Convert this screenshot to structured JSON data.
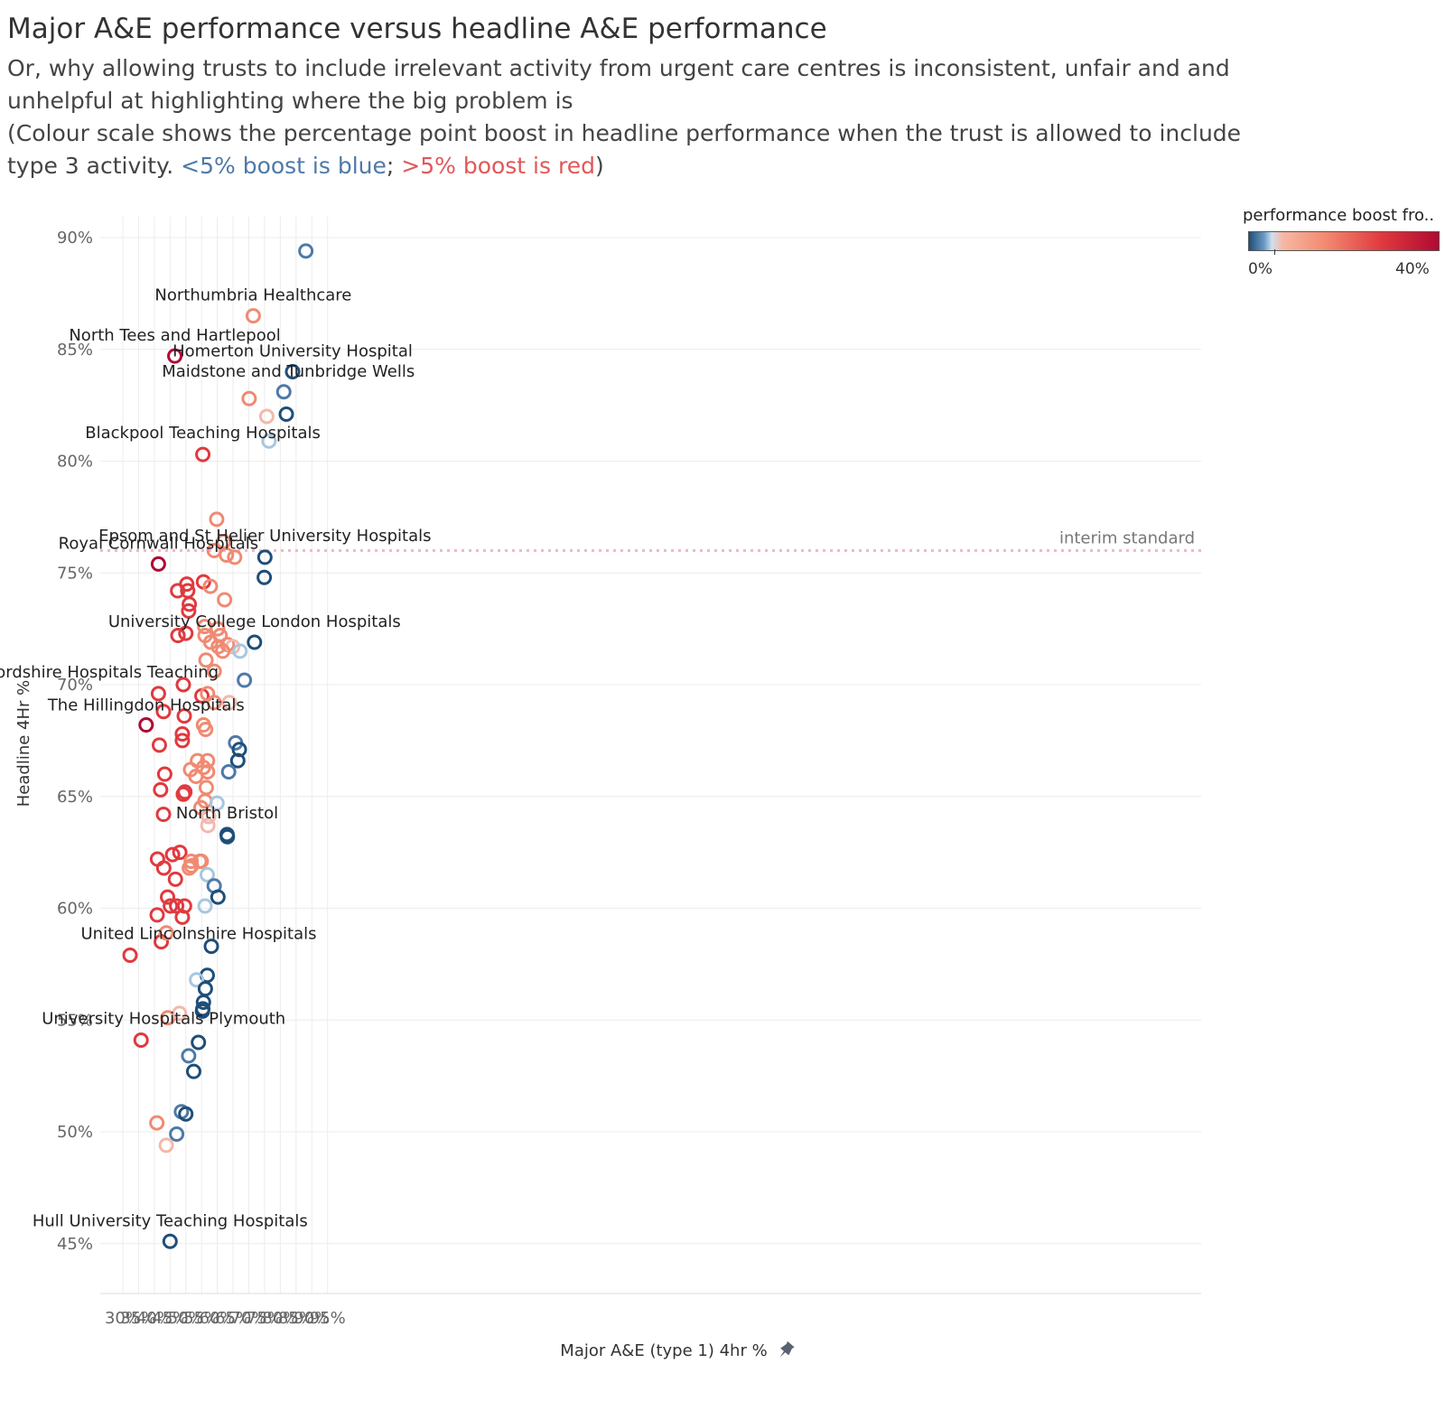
{
  "title": "Major A&E performance versus headline A&E performance",
  "subtitle": {
    "line1": "Or, why allowing trusts to include irrelevant activity from urgent care centres is inconsistent, unfair and  and",
    "line2": "unhelpful at highlighting where the big problem is",
    "line3": "(Colour scale shows the percentage point boost in headline performance when the trust is allowed to include",
    "line4_prefix": "type 3 activity. ",
    "blue_text": "<5% boost is blue",
    "separator": "; ",
    "red_text": ">5% boost is red",
    "suffix": ")"
  },
  "legend": {
    "title": "performance boost fro..",
    "min_label": "0%",
    "max_label": "40%"
  },
  "colors": {
    "dark_blue": "#1f4e79",
    "mid_blue": "#4e79a7",
    "light_blue": "#a7c7df",
    "light_pink": "#f2b8ad",
    "salmon": "#f08a72",
    "red": "#e0393e",
    "crimson": "#b00a32",
    "reference_line": "#f2b8c6"
  },
  "chart_data": {
    "type": "scatter",
    "xlabel": "Major A&E (type 1) 4hr %",
    "ylabel": "Headline 4Hr %",
    "x_ticks": [
      "30%",
      "35%",
      "40%",
      "45%",
      "50%",
      "55%",
      "60%",
      "65%",
      "70%",
      "75%",
      "80%",
      "85%",
      "90%",
      "95%"
    ],
    "y_ticks": [
      "45%",
      "50%",
      "55%",
      "60%",
      "65%",
      "70%",
      "75%",
      "80%",
      "85%",
      "90%"
    ],
    "xlim": [
      29.5,
      99.5
    ],
    "ylim": [
      42.5,
      91.5
    ],
    "grid": true,
    "reference_line": {
      "y": 76,
      "label": "interim standard"
    },
    "color_key": {
      "b0": "dark blue",
      "b1": "mid blue",
      "b2": "light blue",
      "p": "light pink",
      "s": "salmon",
      "r": "red",
      "c": "crimson"
    },
    "points": [
      {
        "x": 88.1,
        "y": 89.4,
        "c": "b1"
      },
      {
        "x": 71.4,
        "y": 86.5,
        "c": "s",
        "label": "Northumbria Healthcare"
      },
      {
        "x": 46.5,
        "y": 84.7,
        "c": "c",
        "label": "North Tees and Hartlepool"
      },
      {
        "x": 83.9,
        "y": 84.0,
        "c": "b0",
        "label": "Homerton University Hospital"
      },
      {
        "x": 81.1,
        "y": 83.1,
        "c": "b1",
        "label": "Maidstone and Tunbridge Wells"
      },
      {
        "x": 70.1,
        "y": 82.8,
        "c": "s"
      },
      {
        "x": 81.9,
        "y": 82.1,
        "c": "b0"
      },
      {
        "x": 75.7,
        "y": 82.0,
        "c": "p"
      },
      {
        "x": 76.4,
        "y": 80.9,
        "c": "b2"
      },
      {
        "x": 55.4,
        "y": 80.3,
        "c": "r",
        "label": "Blackpool Teaching Hospitals"
      },
      {
        "x": 59.8,
        "y": 77.4,
        "c": "s"
      },
      {
        "x": 62.0,
        "y": 76.4,
        "c": "s"
      },
      {
        "x": 59.0,
        "y": 76.0,
        "c": "s"
      },
      {
        "x": 62.9,
        "y": 75.8,
        "c": "s"
      },
      {
        "x": 65.5,
        "y": 75.7,
        "c": "s"
      },
      {
        "x": 75.1,
        "y": 75.7,
        "c": "b0",
        "label": "Epsom and St Helier University Hospitals"
      },
      {
        "x": 74.9,
        "y": 74.8,
        "c": "b0"
      },
      {
        "x": 41.3,
        "y": 75.4,
        "c": "c",
        "label": "Royal Cornwall Hospitals"
      },
      {
        "x": 55.6,
        "y": 74.6,
        "c": "r"
      },
      {
        "x": 57.8,
        "y": 74.4,
        "c": "s"
      },
      {
        "x": 50.3,
        "y": 74.5,
        "c": "r"
      },
      {
        "x": 50.6,
        "y": 74.2,
        "c": "r"
      },
      {
        "x": 47.4,
        "y": 74.2,
        "c": "r"
      },
      {
        "x": 51.1,
        "y": 73.6,
        "c": "r"
      },
      {
        "x": 50.9,
        "y": 73.3,
        "c": "r"
      },
      {
        "x": 62.3,
        "y": 73.8,
        "c": "s"
      },
      {
        "x": 56.0,
        "y": 72.6,
        "c": "s"
      },
      {
        "x": 60.1,
        "y": 72.5,
        "c": "s"
      },
      {
        "x": 60.9,
        "y": 72.2,
        "c": "s"
      },
      {
        "x": 56.1,
        "y": 72.2,
        "c": "s"
      },
      {
        "x": 47.5,
        "y": 72.2,
        "c": "r"
      },
      {
        "x": 50.0,
        "y": 72.3,
        "c": "r"
      },
      {
        "x": 57.9,
        "y": 71.9,
        "c": "s"
      },
      {
        "x": 60.3,
        "y": 71.7,
        "c": "s"
      },
      {
        "x": 63.2,
        "y": 71.8,
        "c": "s"
      },
      {
        "x": 64.9,
        "y": 71.7,
        "c": "p"
      },
      {
        "x": 61.7,
        "y": 71.5,
        "c": "s"
      },
      {
        "x": 67.2,
        "y": 71.5,
        "c": "b2"
      },
      {
        "x": 71.8,
        "y": 71.9,
        "c": "b0",
        "label": "University College London Hospitals"
      },
      {
        "x": 56.4,
        "y": 71.1,
        "c": "s"
      },
      {
        "x": 59.0,
        "y": 70.6,
        "c": "s"
      },
      {
        "x": 68.6,
        "y": 70.2,
        "c": "b1"
      },
      {
        "x": 49.2,
        "y": 70.0,
        "c": "r",
        "label": "West Hertfordshire Hospitals Teaching"
      },
      {
        "x": 41.3,
        "y": 69.6,
        "c": "r"
      },
      {
        "x": 55.1,
        "y": 69.5,
        "c": "r"
      },
      {
        "x": 56.9,
        "y": 69.6,
        "c": "s"
      },
      {
        "x": 59.0,
        "y": 69.2,
        "c": "s"
      },
      {
        "x": 63.8,
        "y": 69.2,
        "c": "p"
      },
      {
        "x": 42.9,
        "y": 68.8,
        "c": "r"
      },
      {
        "x": 37.4,
        "y": 68.2,
        "c": "c",
        "label": "The Hillingdon Hospitals"
      },
      {
        "x": 49.5,
        "y": 68.6,
        "c": "r"
      },
      {
        "x": 55.6,
        "y": 68.2,
        "c": "s"
      },
      {
        "x": 56.3,
        "y": 68.0,
        "c": "s"
      },
      {
        "x": 48.9,
        "y": 67.8,
        "c": "r"
      },
      {
        "x": 48.9,
        "y": 67.5,
        "c": "r"
      },
      {
        "x": 65.8,
        "y": 67.4,
        "c": "b1"
      },
      {
        "x": 67.0,
        "y": 67.1,
        "c": "b0"
      },
      {
        "x": 66.5,
        "y": 66.6,
        "c": "b0"
      },
      {
        "x": 41.6,
        "y": 67.3,
        "c": "r"
      },
      {
        "x": 53.7,
        "y": 66.6,
        "c": "s"
      },
      {
        "x": 56.9,
        "y": 66.6,
        "c": "s"
      },
      {
        "x": 55.6,
        "y": 66.3,
        "c": "s"
      },
      {
        "x": 51.5,
        "y": 66.2,
        "c": "s"
      },
      {
        "x": 56.9,
        "y": 66.1,
        "c": "s"
      },
      {
        "x": 63.6,
        "y": 66.1,
        "c": "b1"
      },
      {
        "x": 43.3,
        "y": 66.0,
        "c": "r"
      },
      {
        "x": 53.2,
        "y": 65.9,
        "c": "s"
      },
      {
        "x": 56.5,
        "y": 65.4,
        "c": "s"
      },
      {
        "x": 42.0,
        "y": 65.3,
        "c": "r"
      },
      {
        "x": 49.2,
        "y": 65.1,
        "c": "r"
      },
      {
        "x": 49.7,
        "y": 65.2,
        "c": "r"
      },
      {
        "x": 56.1,
        "y": 64.8,
        "c": "s"
      },
      {
        "x": 59.9,
        "y": 64.7,
        "c": "b2"
      },
      {
        "x": 54.8,
        "y": 64.5,
        "c": "s"
      },
      {
        "x": 42.9,
        "y": 64.2,
        "c": "r"
      },
      {
        "x": 57.2,
        "y": 64.1,
        "c": "p"
      },
      {
        "x": 57.0,
        "y": 63.7,
        "c": "p"
      },
      {
        "x": 63.1,
        "y": 63.3,
        "c": "b0",
        "label": "North Bristol"
      },
      {
        "x": 63.2,
        "y": 63.2,
        "c": "b0"
      },
      {
        "x": 45.8,
        "y": 62.4,
        "c": "r"
      },
      {
        "x": 48.1,
        "y": 62.5,
        "c": "r"
      },
      {
        "x": 41.0,
        "y": 62.2,
        "c": "r"
      },
      {
        "x": 51.7,
        "y": 62.1,
        "c": "s"
      },
      {
        "x": 54.4,
        "y": 62.1,
        "c": "s"
      },
      {
        "x": 54.9,
        "y": 62.1,
        "c": "s"
      },
      {
        "x": 51.8,
        "y": 61.9,
        "c": "s"
      },
      {
        "x": 51.1,
        "y": 61.8,
        "c": "s"
      },
      {
        "x": 43.0,
        "y": 61.8,
        "c": "r"
      },
      {
        "x": 56.8,
        "y": 61.5,
        "c": "b2"
      },
      {
        "x": 46.7,
        "y": 61.3,
        "c": "r"
      },
      {
        "x": 59.0,
        "y": 61.0,
        "c": "b1"
      },
      {
        "x": 60.2,
        "y": 60.5,
        "c": "b0"
      },
      {
        "x": 44.2,
        "y": 60.5,
        "c": "r"
      },
      {
        "x": 45.1,
        "y": 60.1,
        "c": "r"
      },
      {
        "x": 47.1,
        "y": 60.1,
        "c": "r"
      },
      {
        "x": 49.6,
        "y": 60.1,
        "c": "r"
      },
      {
        "x": 56.1,
        "y": 60.1,
        "c": "b2"
      },
      {
        "x": 40.9,
        "y": 59.7,
        "c": "r"
      },
      {
        "x": 48.9,
        "y": 59.6,
        "c": "r"
      },
      {
        "x": 32.3,
        "y": 57.9,
        "c": "r",
        "label": "United Lincolnshire Hospitals"
      },
      {
        "x": 42.2,
        "y": 58.5,
        "c": "r"
      },
      {
        "x": 43.8,
        "y": 58.9,
        "c": "s"
      },
      {
        "x": 58.1,
        "y": 58.3,
        "c": "b0"
      },
      {
        "x": 56.8,
        "y": 57.0,
        "c": "b0"
      },
      {
        "x": 53.4,
        "y": 56.8,
        "c": "b2"
      },
      {
        "x": 56.2,
        "y": 56.4,
        "c": "b0"
      },
      {
        "x": 55.6,
        "y": 55.8,
        "c": "b0"
      },
      {
        "x": 55.4,
        "y": 55.5,
        "c": "b0"
      },
      {
        "x": 55.3,
        "y": 55.4,
        "c": "b0"
      },
      {
        "x": 44.3,
        "y": 55.1,
        "c": "s"
      },
      {
        "x": 48.0,
        "y": 55.3,
        "c": "p"
      },
      {
        "x": 35.8,
        "y": 54.1,
        "c": "r",
        "label": "University Hospitals Plymouth"
      },
      {
        "x": 54.0,
        "y": 54.0,
        "c": "b0"
      },
      {
        "x": 50.9,
        "y": 53.4,
        "c": "b1"
      },
      {
        "x": 52.5,
        "y": 52.7,
        "c": "b0"
      },
      {
        "x": 48.6,
        "y": 50.9,
        "c": "b1"
      },
      {
        "x": 50.0,
        "y": 50.8,
        "c": "b0"
      },
      {
        "x": 40.8,
        "y": 50.4,
        "c": "s"
      },
      {
        "x": 47.1,
        "y": 49.9,
        "c": "b1"
      },
      {
        "x": 43.8,
        "y": 49.4,
        "c": "p"
      },
      {
        "x": 45.0,
        "y": 45.1,
        "c": "b0",
        "label": "Hull University Teaching Hospitals"
      }
    ]
  }
}
